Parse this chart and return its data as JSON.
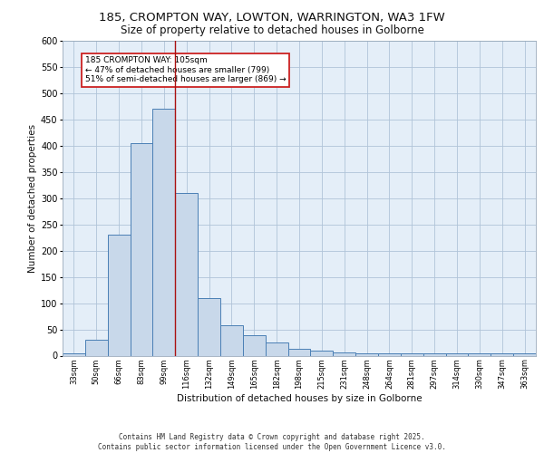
{
  "title_line1": "185, CROMPTON WAY, LOWTON, WARRINGTON, WA3 1FW",
  "title_line2": "Size of property relative to detached houses in Golborne",
  "xlabel": "Distribution of detached houses by size in Golborne",
  "ylabel": "Number of detached properties",
  "categories": [
    "33sqm",
    "50sqm",
    "66sqm",
    "83sqm",
    "99sqm",
    "116sqm",
    "132sqm",
    "149sqm",
    "165sqm",
    "182sqm",
    "198sqm",
    "215sqm",
    "231sqm",
    "248sqm",
    "264sqm",
    "281sqm",
    "297sqm",
    "314sqm",
    "330sqm",
    "347sqm",
    "363sqm"
  ],
  "values": [
    5,
    30,
    230,
    405,
    470,
    310,
    110,
    57,
    38,
    25,
    13,
    10,
    6,
    5,
    5,
    5,
    5,
    5,
    5,
    5,
    5
  ],
  "bar_color": "#c8d8ea",
  "bar_edge_color": "#4a7fb5",
  "bar_edge_width": 0.7,
  "grid_color": "#b0c4d8",
  "background_color": "#e4eef8",
  "vline_color": "#aa1111",
  "annotation_text": "185 CROMPTON WAY: 105sqm\n← 47% of detached houses are smaller (799)\n51% of semi-detached houses are larger (869) →",
  "annotation_box_color": "white",
  "annotation_box_edge": "#cc2222",
  "ylim": [
    0,
    600
  ],
  "yticks": [
    0,
    50,
    100,
    150,
    200,
    250,
    300,
    350,
    400,
    450,
    500,
    550,
    600
  ],
  "footer_line1": "Contains HM Land Registry data © Crown copyright and database right 2025.",
  "footer_line2": "Contains public sector information licensed under the Open Government Licence v3.0."
}
